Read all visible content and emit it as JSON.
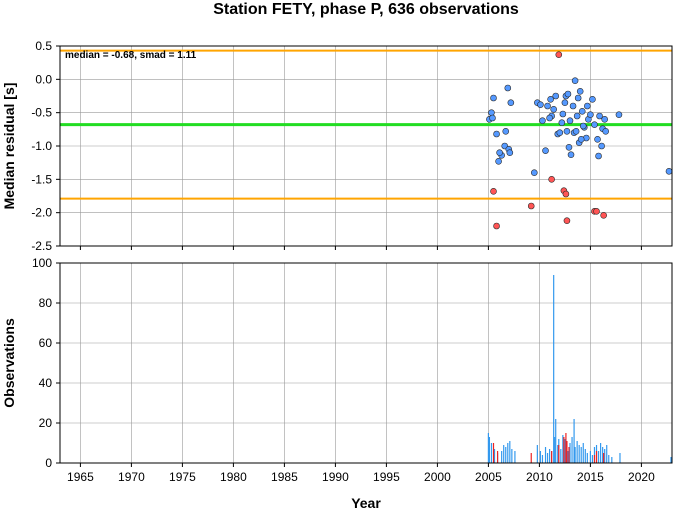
{
  "chart_data": [
    {
      "type": "scatter",
      "title": "Station FETY, phase P, 636 observations",
      "ylabel": "Median residual [s]",
      "xlim": [
        1963,
        2023
      ],
      "ylim": [
        -2.5,
        0.5
      ],
      "yticks": [
        "0.5",
        "0.0",
        "-0.5",
        "-1.0",
        "-1.5",
        "-2.0",
        "-2.5"
      ],
      "ytick_values": [
        0.5,
        0.0,
        -0.5,
        -1.0,
        -1.5,
        -2.0,
        -2.5
      ],
      "stats_text": "median = -0.68, smad = 1.11",
      "median": -0.68,
      "upper_bound": 0.43,
      "lower_bound": -1.79,
      "grid": true,
      "colors": {
        "median_line": "#22dd22",
        "bounds": "#ffa500",
        "inliers": "#5599ff",
        "outliers": "#ff5555"
      },
      "series": [
        {
          "kind": "inliers",
          "x": [
            2005.1,
            2005.3,
            2005.5,
            2005.4,
            2005.8,
            2006.0,
            2006.3,
            2006.6,
            2006.9,
            2007.2,
            2006.7,
            2007.0,
            2006.1,
            2007.1,
            2009.8,
            2010.1,
            2010.6,
            2010.8,
            2011.1,
            2011.2,
            2011.6,
            2011.4,
            2011.8,
            2012.0,
            2012.3,
            2012.5,
            2012.6,
            2012.9,
            2013.1,
            2013.4,
            2013.7,
            2013.9,
            2014.2,
            2014.4,
            2014.6,
            2014.8,
            2015.0,
            2015.2,
            2015.4,
            2015.7,
            2015.9,
            2016.1,
            2016.4,
            2012.2,
            2012.7,
            2013.0,
            2013.3,
            2013.6,
            2014.0,
            2014.3,
            2013.5,
            2014.7,
            2011.0,
            2010.3,
            2012.8,
            2017.8,
            2016.2,
            2015.8,
            2016.5,
            2023.0,
            2009.5,
            2013.8,
            2014.1
          ],
          "y": [
            -0.6,
            -0.5,
            -0.28,
            -0.58,
            -0.82,
            -1.23,
            -1.14,
            -1.0,
            -0.13,
            -0.35,
            -0.78,
            -1.05,
            -1.1,
            -1.1,
            -0.35,
            -0.38,
            -1.07,
            -0.4,
            -0.3,
            -0.55,
            -0.25,
            -0.45,
            -0.82,
            -0.8,
            -0.52,
            -0.35,
            -0.25,
            -1.02,
            -1.13,
            -0.8,
            -0.55,
            -0.95,
            -0.48,
            -0.72,
            -0.88,
            -0.6,
            -0.53,
            -0.3,
            -0.68,
            -0.9,
            -0.55,
            -1.0,
            -0.6,
            -0.65,
            -0.78,
            -0.62,
            -0.4,
            -0.78,
            -0.18,
            -0.7,
            -0.02,
            -0.4,
            -0.58,
            -0.62,
            -0.22,
            -0.53,
            -0.74,
            -1.15,
            -0.78,
            -1.38,
            -1.4,
            -0.28,
            -0.9
          ]
        },
        {
          "kind": "outliers",
          "x": [
            2005.5,
            2005.8,
            2009.2,
            2011.2,
            2011.9,
            2012.4,
            2012.6,
            2012.7,
            2015.4,
            2015.6,
            2016.3
          ],
          "y": [
            -1.68,
            -2.2,
            -1.9,
            -1.5,
            0.37,
            -1.67,
            -1.72,
            -2.12,
            -1.98,
            -1.98,
            -2.04
          ]
        }
      ]
    },
    {
      "type": "bar",
      "ylabel": "Observations",
      "xlabel": "Year",
      "xlim": [
        1963,
        2023
      ],
      "ylim": [
        0,
        100
      ],
      "xticks": [
        "1965",
        "1970",
        "1975",
        "1980",
        "1985",
        "1990",
        "1995",
        "2000",
        "2005",
        "2010",
        "2015",
        "2020"
      ],
      "xtick_values": [
        1965,
        1970,
        1975,
        1980,
        1985,
        1990,
        1995,
        2000,
        2005,
        2010,
        2015,
        2020
      ],
      "yticks": [
        "100",
        "80",
        "60",
        "40",
        "20",
        "0"
      ],
      "ytick_values": [
        100,
        80,
        60,
        40,
        20,
        0
      ],
      "grid": true,
      "colors": {
        "inliers": "#3399ee",
        "outliers": "#ee2222"
      },
      "series": [
        {
          "kind": "inliers",
          "x": [
            2005.0,
            2005.1,
            2005.3,
            2005.6,
            2005.9,
            2006.3,
            2006.5,
            2006.7,
            2006.9,
            2007.1,
            2007.3,
            2007.6,
            2009.8,
            2010.1,
            2010.3,
            2010.6,
            2010.8,
            2011.0,
            2011.2,
            2011.4,
            2011.5,
            2011.6,
            2011.8,
            2011.9,
            2012.1,
            2012.3,
            2012.5,
            2012.8,
            2013.0,
            2013.2,
            2013.4,
            2013.5,
            2013.7,
            2013.9,
            2014.1,
            2014.3,
            2014.5,
            2014.7,
            2015.0,
            2015.2,
            2015.4,
            2015.6,
            2015.8,
            2016.0,
            2016.2,
            2016.4,
            2016.6,
            2016.8,
            2017.1,
            2017.9,
            2023.0
          ],
          "values": [
            15,
            13,
            10,
            7,
            5,
            6,
            9,
            8,
            10,
            11,
            7,
            6,
            9,
            6,
            4,
            8,
            5,
            7,
            6,
            94,
            13,
            22,
            9,
            12,
            7,
            14,
            12,
            6,
            10,
            13,
            22,
            8,
            11,
            9,
            8,
            10,
            7,
            5,
            6,
            4,
            8,
            9,
            6,
            10,
            8,
            7,
            9,
            4,
            3,
            5,
            3
          ]
        },
        {
          "kind": "outliers",
          "x": [
            2005.5,
            2005.9,
            2009.2,
            2011.2,
            2011.9,
            2012.4,
            2012.6,
            2012.7,
            2012.9,
            2015.4,
            2015.6,
            2016.3
          ],
          "values": [
            10,
            6,
            5,
            6,
            9,
            13,
            15,
            11,
            8,
            4,
            6,
            5
          ]
        }
      ]
    }
  ]
}
